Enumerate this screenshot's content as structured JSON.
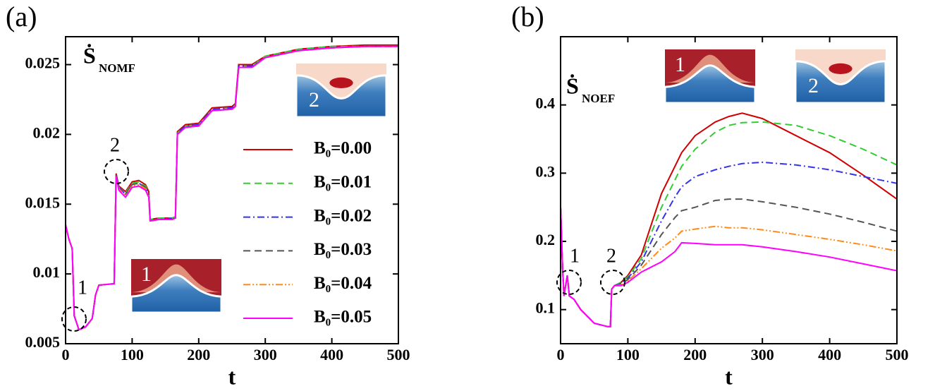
{
  "chart_data": [
    {
      "type": "line",
      "panel_label": "(a)",
      "ylabel": {
        "symbol": "Ṡ",
        "subscript": "NOMF"
      },
      "xlabel": "t",
      "annotations": [
        "1",
        "2"
      ],
      "inset_labels": [
        "2",
        "1"
      ],
      "xlim": [
        0,
        500
      ],
      "xticks": [
        0,
        100,
        200,
        300,
        400,
        500
      ],
      "ylim": [
        0.005,
        0.027
      ],
      "yticks": [
        0.005,
        0.01,
        0.015,
        0.02,
        0.025
      ],
      "legend": "right",
      "x": [
        0,
        5,
        10,
        13,
        20,
        30,
        40,
        45,
        50,
        73,
        76,
        80,
        90,
        100,
        110,
        120,
        125,
        127,
        140,
        160,
        165,
        168,
        180,
        200,
        220,
        250,
        255,
        260,
        280,
        300,
        350,
        400,
        450,
        500
      ],
      "series": [
        {
          "name": "B₀=0.00",
          "color": "#d00000",
          "dash": "solid",
          "values": [
            0.0135,
            0.0125,
            0.0118,
            0.007,
            0.006,
            0.0062,
            0.0068,
            0.0085,
            0.0092,
            0.0093,
            0.0172,
            0.0163,
            0.0159,
            0.0166,
            0.0167,
            0.0164,
            0.0159,
            0.0139,
            0.014,
            0.014,
            0.0141,
            0.0202,
            0.0207,
            0.0208,
            0.0219,
            0.022,
            0.0222,
            0.025,
            0.025,
            0.0256,
            0.0261,
            0.0263,
            0.0264,
            0.0264
          ]
        },
        {
          "name": "B₀=0.01",
          "color": "#33cc33",
          "dash": "dashed",
          "values": [
            0.0135,
            0.0125,
            0.0118,
            0.007,
            0.006,
            0.0062,
            0.0068,
            0.0085,
            0.0092,
            0.0093,
            0.0171,
            0.0162,
            0.0158,
            0.0165,
            0.0166,
            0.0163,
            0.0158,
            0.0139,
            0.014,
            0.014,
            0.0141,
            0.0201,
            0.0206,
            0.0207,
            0.0218,
            0.0219,
            0.0221,
            0.0249,
            0.0249,
            0.0256,
            0.0261,
            0.0263,
            0.0263,
            0.0263
          ]
        },
        {
          "name": "B₀=0.02",
          "color": "#3333ee",
          "dash": "dashdot",
          "values": [
            0.0135,
            0.0125,
            0.0118,
            0.007,
            0.006,
            0.0062,
            0.0068,
            0.0085,
            0.0092,
            0.0093,
            0.0171,
            0.0162,
            0.0157,
            0.0164,
            0.0165,
            0.0162,
            0.0157,
            0.0138,
            0.0139,
            0.014,
            0.014,
            0.0201,
            0.0206,
            0.0207,
            0.0218,
            0.0219,
            0.0221,
            0.0249,
            0.0249,
            0.0255,
            0.026,
            0.0262,
            0.0263,
            0.0263
          ]
        },
        {
          "name": "B₀=0.03",
          "color": "#555555",
          "dash": "dashed",
          "values": [
            0.0135,
            0.0125,
            0.0118,
            0.007,
            0.006,
            0.0062,
            0.0068,
            0.0085,
            0.0092,
            0.0093,
            0.0171,
            0.0161,
            0.0157,
            0.0164,
            0.0165,
            0.0162,
            0.0157,
            0.0138,
            0.0139,
            0.0139,
            0.014,
            0.02,
            0.0205,
            0.0206,
            0.0217,
            0.0218,
            0.022,
            0.0248,
            0.0248,
            0.0255,
            0.026,
            0.0262,
            0.0263,
            0.0263
          ]
        },
        {
          "name": "B₀=0.04",
          "color": "#ff8c1a",
          "dash": "dashdotdot",
          "values": [
            0.0135,
            0.0125,
            0.0118,
            0.007,
            0.006,
            0.0062,
            0.0068,
            0.0085,
            0.0092,
            0.0093,
            0.017,
            0.0161,
            0.0156,
            0.0163,
            0.0164,
            0.0161,
            0.0156,
            0.0138,
            0.0139,
            0.0139,
            0.014,
            0.02,
            0.0205,
            0.0206,
            0.0217,
            0.0218,
            0.022,
            0.0248,
            0.0248,
            0.0255,
            0.026,
            0.0262,
            0.0263,
            0.0263
          ]
        },
        {
          "name": "B₀=0.05",
          "color": "#ff00ff",
          "dash": "solid",
          "values": [
            0.0135,
            0.0125,
            0.0118,
            0.007,
            0.006,
            0.0062,
            0.0068,
            0.0085,
            0.0092,
            0.0093,
            0.017,
            0.016,
            0.0155,
            0.0162,
            0.0163,
            0.016,
            0.0155,
            0.0138,
            0.0139,
            0.0139,
            0.014,
            0.02,
            0.0205,
            0.0206,
            0.0217,
            0.0218,
            0.022,
            0.0248,
            0.0248,
            0.0255,
            0.026,
            0.0262,
            0.0263,
            0.0263
          ]
        }
      ]
    },
    {
      "type": "line",
      "panel_label": "(b)",
      "ylabel": {
        "symbol": "Ṡ",
        "subscript": "NOEF"
      },
      "xlabel": "t",
      "annotations": [
        "1",
        "2"
      ],
      "inset_labels": [
        "1",
        "2"
      ],
      "xlim": [
        0,
        500
      ],
      "xticks": [
        0,
        100,
        200,
        300,
        400,
        500
      ],
      "ylim": [
        0.05,
        0.5
      ],
      "yticks": [
        0.1,
        0.2,
        0.3,
        0.4
      ],
      "x": [
        0,
        3,
        5,
        10,
        13,
        20,
        30,
        50,
        70,
        74,
        76,
        80,
        90,
        100,
        120,
        130,
        150,
        170,
        180,
        200,
        230,
        250,
        270,
        300,
        350,
        400,
        450,
        500
      ],
      "series": [
        {
          "color": "#d00000",
          "dash": "solid",
          "values": [
            0.25,
            0.16,
            0.12,
            0.15,
            0.12,
            0.115,
            0.1,
            0.08,
            0.075,
            0.075,
            0.13,
            0.135,
            0.14,
            0.15,
            0.18,
            0.21,
            0.27,
            0.31,
            0.33,
            0.355,
            0.375,
            0.383,
            0.388,
            0.38,
            0.355,
            0.33,
            0.297,
            0.262
          ]
        },
        {
          "color": "#33cc33",
          "dash": "dashed",
          "values": [
            0.25,
            0.16,
            0.12,
            0.15,
            0.12,
            0.115,
            0.1,
            0.08,
            0.075,
            0.075,
            0.13,
            0.135,
            0.14,
            0.148,
            0.175,
            0.2,
            0.25,
            0.29,
            0.31,
            0.335,
            0.36,
            0.37,
            0.374,
            0.375,
            0.37,
            0.355,
            0.335,
            0.312
          ]
        },
        {
          "color": "#3333ee",
          "dash": "dashdot",
          "values": [
            0.25,
            0.16,
            0.12,
            0.15,
            0.12,
            0.115,
            0.1,
            0.08,
            0.075,
            0.075,
            0.13,
            0.135,
            0.138,
            0.146,
            0.17,
            0.19,
            0.23,
            0.265,
            0.28,
            0.295,
            0.305,
            0.31,
            0.314,
            0.316,
            0.312,
            0.305,
            0.295,
            0.285
          ]
        },
        {
          "color": "#555555",
          "dash": "dashed",
          "values": [
            0.25,
            0.16,
            0.12,
            0.15,
            0.12,
            0.115,
            0.1,
            0.08,
            0.075,
            0.075,
            0.13,
            0.135,
            0.137,
            0.144,
            0.165,
            0.18,
            0.21,
            0.235,
            0.245,
            0.25,
            0.26,
            0.262,
            0.262,
            0.258,
            0.25,
            0.24,
            0.228,
            0.215
          ]
        },
        {
          "color": "#ff8c1a",
          "dash": "dashdotdot",
          "values": [
            0.25,
            0.16,
            0.12,
            0.15,
            0.12,
            0.115,
            0.1,
            0.08,
            0.075,
            0.075,
            0.13,
            0.135,
            0.136,
            0.142,
            0.16,
            0.17,
            0.19,
            0.205,
            0.215,
            0.218,
            0.222,
            0.22,
            0.22,
            0.217,
            0.21,
            0.203,
            0.195,
            0.186
          ]
        },
        {
          "color": "#ff00ff",
          "dash": "solid",
          "values": [
            0.25,
            0.16,
            0.12,
            0.15,
            0.12,
            0.115,
            0.1,
            0.08,
            0.075,
            0.075,
            0.13,
            0.135,
            0.135,
            0.14,
            0.155,
            0.16,
            0.17,
            0.185,
            0.198,
            0.197,
            0.195,
            0.195,
            0.195,
            0.192,
            0.185,
            0.177,
            0.167,
            0.157
          ]
        }
      ]
    }
  ]
}
